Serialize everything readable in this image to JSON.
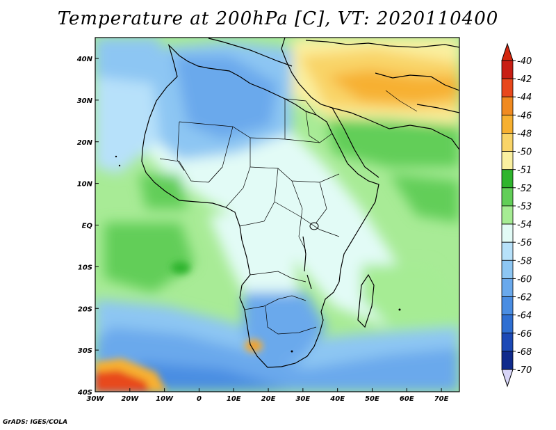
{
  "title": "Temperature at 200hPa [C], VT: 2020110400",
  "credit": "GrADS: IGES/COLA",
  "axes": {
    "x_ticks": [
      "30W",
      "20W",
      "10W",
      "0",
      "10E",
      "20E",
      "30E",
      "40E",
      "50E",
      "60E",
      "70E"
    ],
    "y_ticks": [
      "40N",
      "30N",
      "20N",
      "10N",
      "EQ",
      "10S",
      "20S",
      "30S",
      "40S"
    ]
  },
  "colorbar": {
    "levels": [
      "-40",
      "-42",
      "-44",
      "-46",
      "-48",
      "-50",
      "-51",
      "-52",
      "-53",
      "-54",
      "-56",
      "-58",
      "-60",
      "-62",
      "-64",
      "-66",
      "-68",
      "-70"
    ],
    "colors": [
      "#c81e14",
      "#e8481c",
      "#f08a20",
      "#f7b030",
      "#f9d468",
      "#faf0a0",
      "#2fb42d",
      "#62ce58",
      "#a6ec94",
      "#e2fbf6",
      "#b7e1fa",
      "#8dc6f3",
      "#6aa9ec",
      "#4a8de2",
      "#2f6fd2",
      "#1c49b6",
      "#0f2a8c",
      "#081a6a"
    ],
    "top_color": "#d3270f",
    "bottom_color": "#d7d4f7"
  }
}
